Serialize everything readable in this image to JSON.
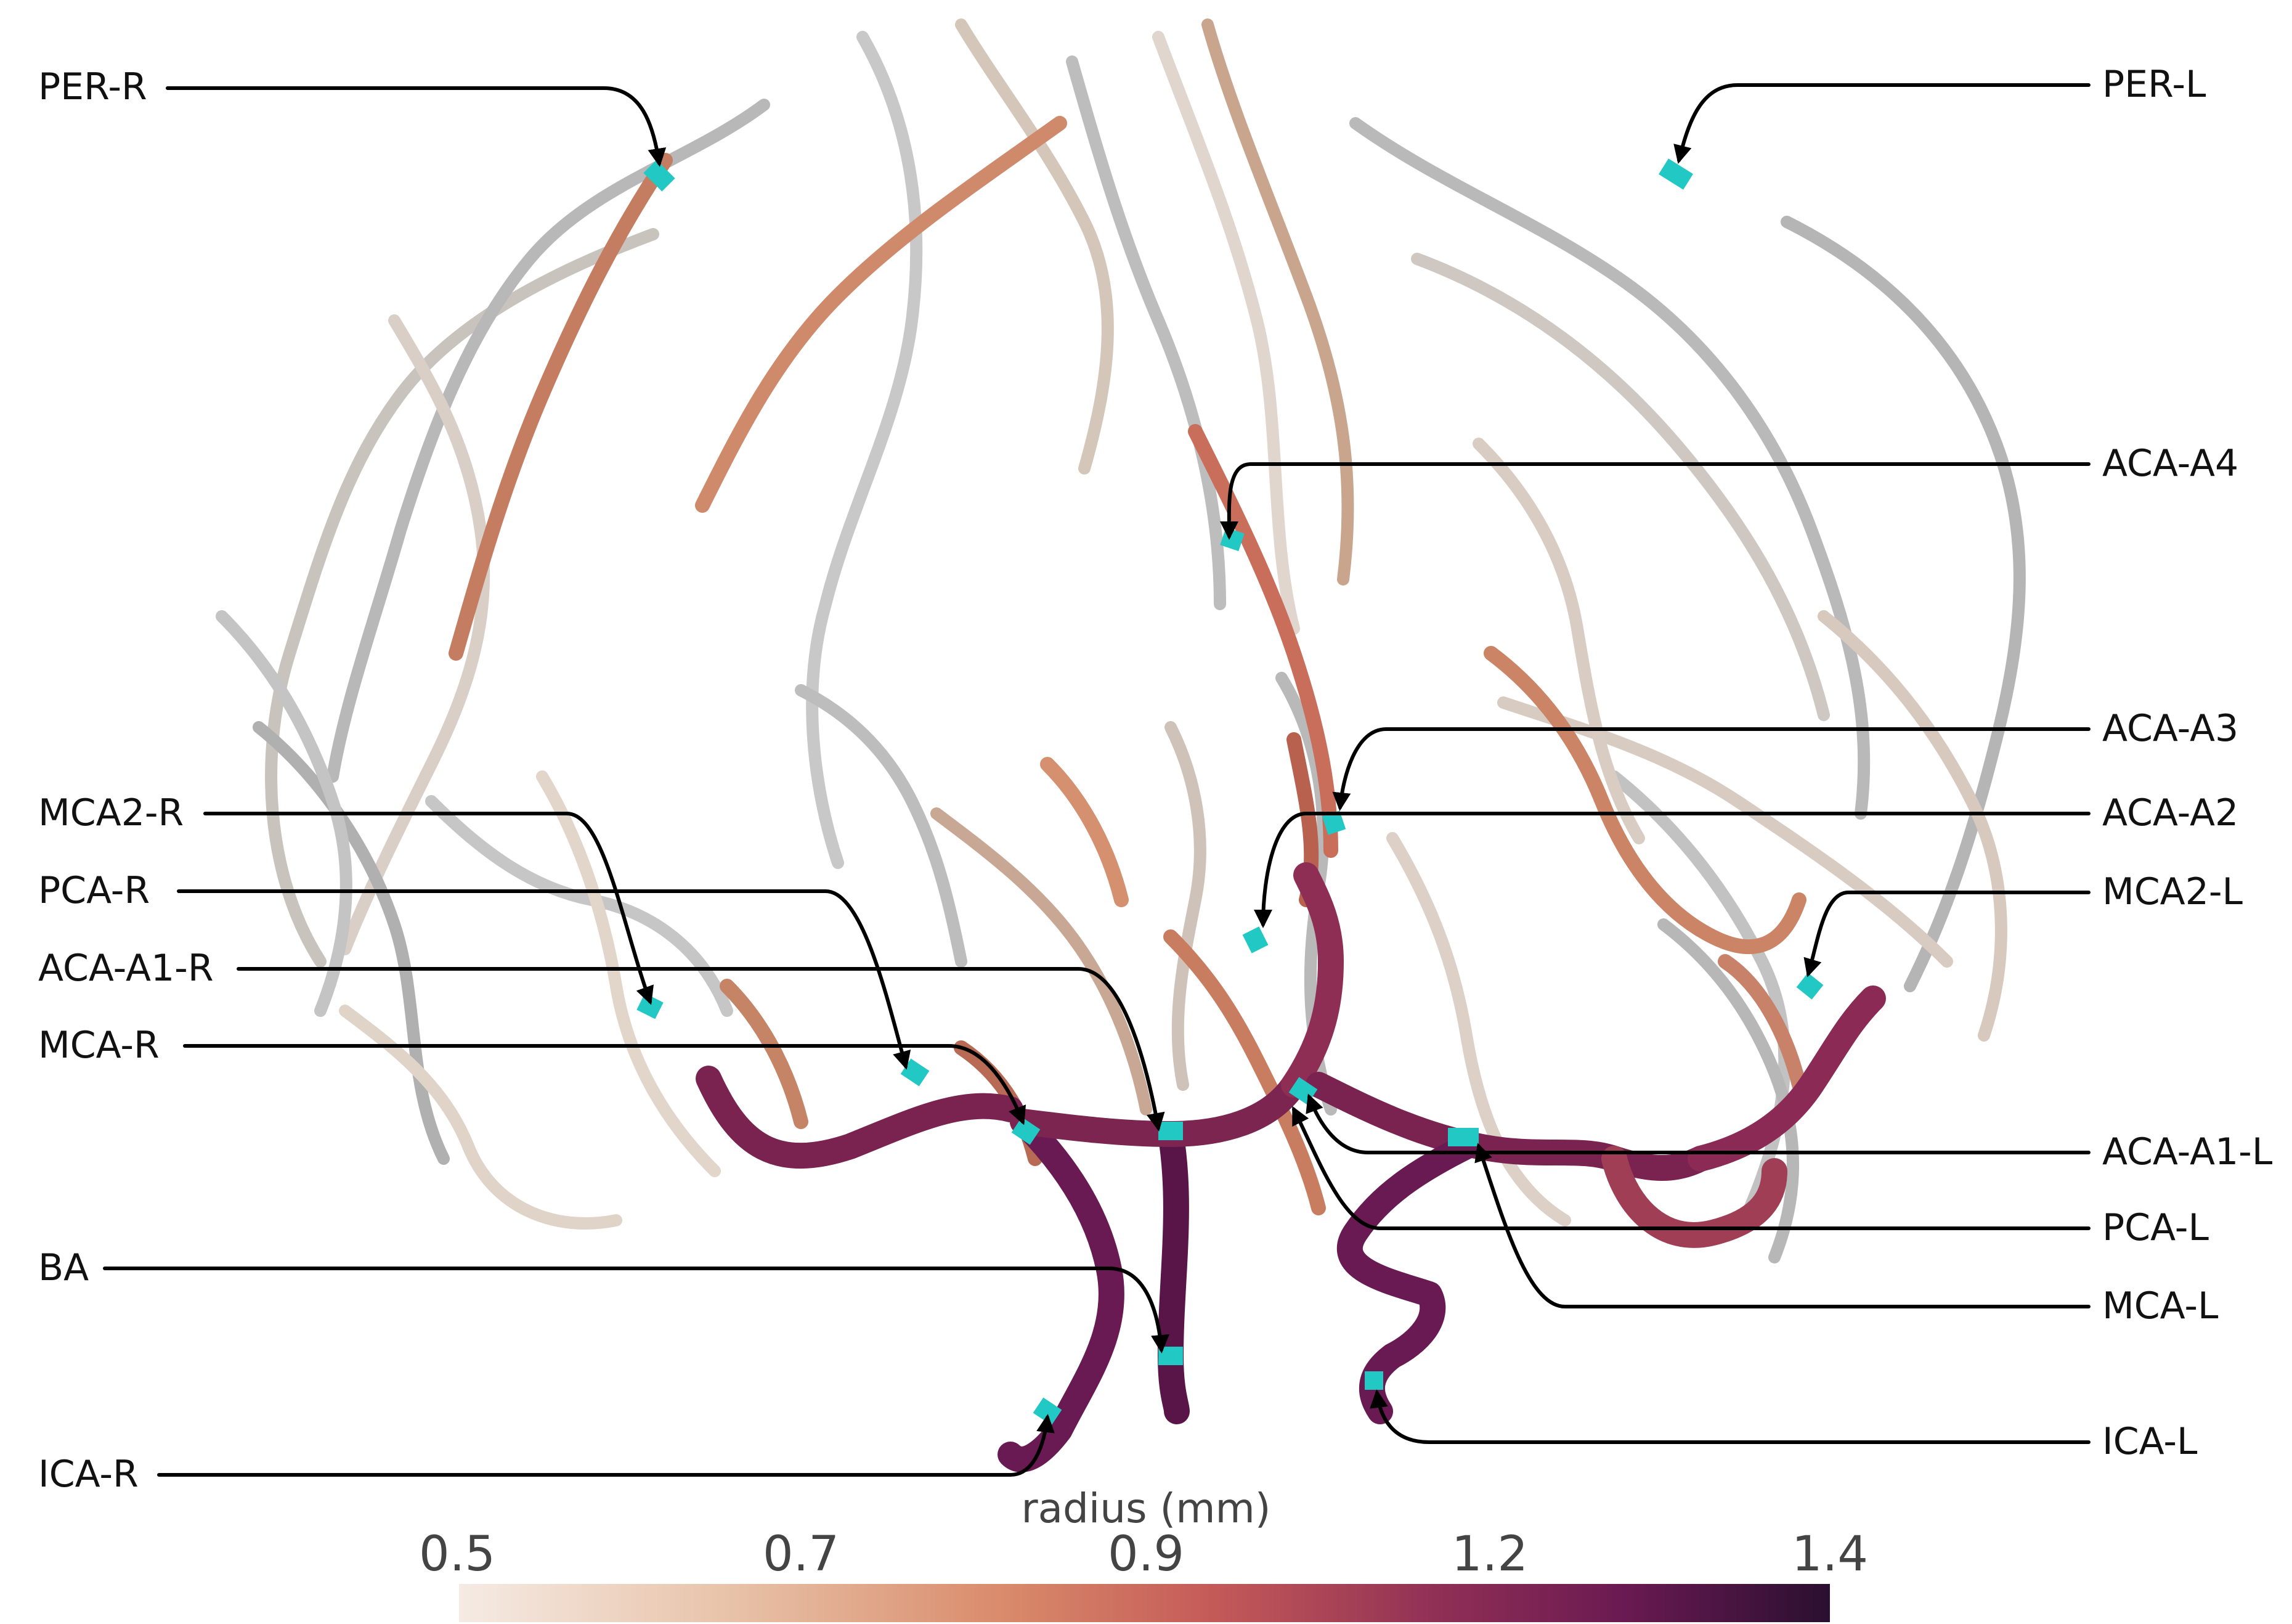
{
  "labels": {
    "per_r": "PER-R",
    "per_l": "PER-L",
    "aca_a4": "ACA-A4",
    "aca_a3": "ACA-A3",
    "aca_a2": "ACA-A2",
    "mca2_r": "MCA2-R",
    "mca2_l": "MCA2-L",
    "pca_r": "PCA-R",
    "aca_a1_r": "ACA-A1-R",
    "mca_r": "MCA-R",
    "aca_a1_l": "ACA-A1-L",
    "pca_l": "PCA-L",
    "mca_l": "MCA-L",
    "ba": "BA",
    "ica_l": "ICA-L",
    "ica_r": "ICA-R"
  },
  "colorbar": {
    "title": "radius (mm)",
    "ticks": [
      "0.5",
      "0.7",
      "0.9",
      "1.2",
      "1.4"
    ],
    "colors": [
      "#f5ebe4",
      "#e8c2a8",
      "#d98a6a",
      "#c45a58",
      "#8e2e55",
      "#6a1a52",
      "#2a0f30"
    ]
  },
  "colors": {
    "marker": "#22c8c4",
    "vessel_gray": "#bcbcbc",
    "vessel_light": "#e6d9cf",
    "vessel_mid": "#c98565",
    "vessel_dark": "#7a2350"
  }
}
